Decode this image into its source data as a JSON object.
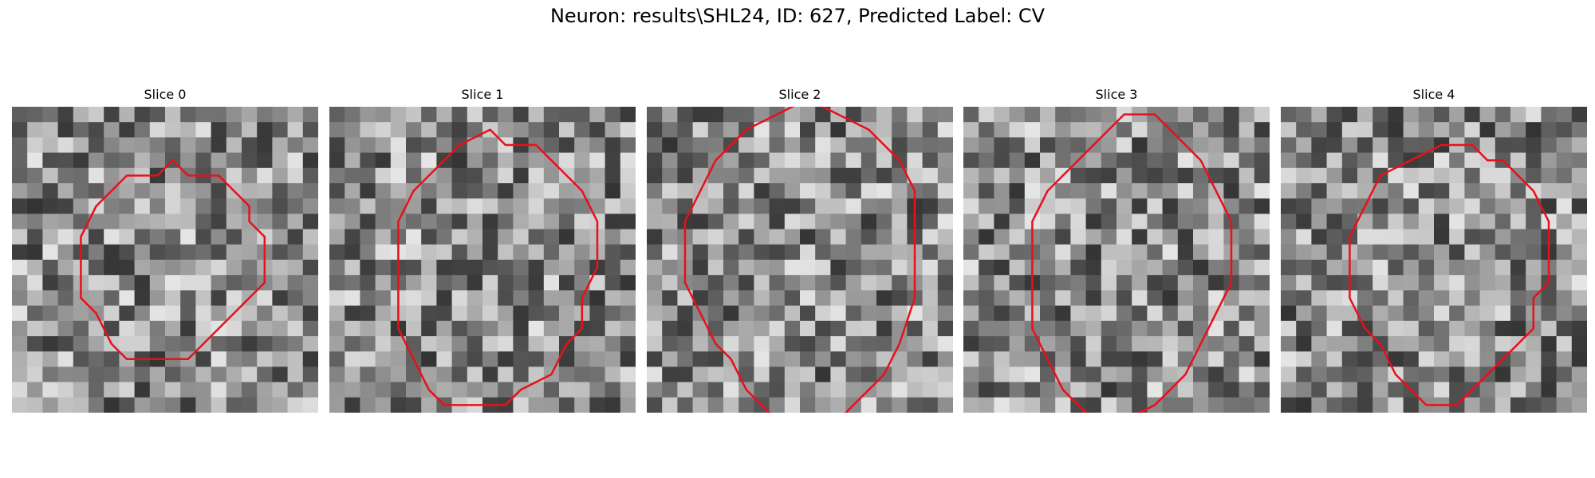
{
  "figure": {
    "title": "Neuron: results\\SHL24, ID: 627, Predicted Label: CV"
  },
  "slices": [
    {
      "label": "Slice 0",
      "seed": 11,
      "contour": [
        [
          7,
          3
        ],
        [
          8,
          4
        ],
        [
          10,
          4
        ],
        [
          11,
          5
        ],
        [
          12,
          6
        ],
        [
          12,
          7
        ],
        [
          13,
          8
        ],
        [
          13,
          11
        ],
        [
          12,
          12
        ],
        [
          11,
          13
        ],
        [
          10,
          14
        ],
        [
          9,
          15
        ],
        [
          8,
          16
        ],
        [
          6,
          16
        ],
        [
          5,
          16
        ],
        [
          4,
          16
        ],
        [
          3,
          15
        ],
        [
          2,
          13
        ],
        [
          1,
          12
        ],
        [
          1,
          8
        ],
        [
          2,
          6
        ],
        [
          3,
          5
        ],
        [
          4,
          4
        ],
        [
          6,
          4
        ]
      ],
      "contour_color": "#e8101a"
    },
    {
      "label": "Slice 1",
      "seed": 23,
      "contour": [
        [
          7,
          1
        ],
        [
          8,
          2
        ],
        [
          10,
          2
        ],
        [
          11,
          3
        ],
        [
          12,
          4
        ],
        [
          13,
          5
        ],
        [
          14,
          7
        ],
        [
          14,
          10
        ],
        [
          13,
          12
        ],
        [
          13,
          14
        ],
        [
          12,
          15
        ],
        [
          11,
          17
        ],
        [
          9,
          18
        ],
        [
          8,
          19
        ],
        [
          6,
          19
        ],
        [
          4,
          19
        ],
        [
          3,
          18
        ],
        [
          2,
          16
        ],
        [
          1,
          14
        ],
        [
          1,
          10
        ],
        [
          1,
          7
        ],
        [
          2,
          5
        ],
        [
          4,
          3
        ],
        [
          5,
          2
        ]
      ],
      "contour_color": "#e8101a"
    },
    {
      "label": "Slice 2",
      "seed": 37,
      "contour": [
        [
          7,
          -1
        ],
        [
          9,
          0
        ],
        [
          11,
          1
        ],
        [
          12,
          2
        ],
        [
          13,
          3
        ],
        [
          14,
          5
        ],
        [
          14,
          8
        ],
        [
          14,
          12
        ],
        [
          13,
          15
        ],
        [
          12,
          17
        ],
        [
          11,
          18
        ],
        [
          10,
          19
        ],
        [
          9,
          20
        ],
        [
          7,
          20
        ],
        [
          5,
          20
        ],
        [
          4,
          19
        ],
        [
          3,
          18
        ],
        [
          2,
          16
        ],
        [
          1,
          15
        ],
        [
          0,
          13
        ],
        [
          -1,
          11
        ],
        [
          -1,
          7
        ],
        [
          0,
          5
        ],
        [
          1,
          3
        ],
        [
          3,
          1
        ],
        [
          5,
          0
        ]
      ],
      "contour_color": "#e8101a"
    },
    {
      "label": "Slice 3",
      "seed": 51,
      "contour": [
        [
          7,
          0
        ],
        [
          9,
          0
        ],
        [
          10,
          1
        ],
        [
          11,
          2
        ],
        [
          12,
          3
        ],
        [
          13,
          5
        ],
        [
          14,
          7
        ],
        [
          14,
          11
        ],
        [
          13,
          13
        ],
        [
          12,
          15
        ],
        [
          11,
          17
        ],
        [
          10,
          18
        ],
        [
          9,
          19
        ],
        [
          7,
          20
        ],
        [
          5,
          20
        ],
        [
          4,
          19
        ],
        [
          3,
          18
        ],
        [
          2,
          16
        ],
        [
          1,
          14
        ],
        [
          1,
          9
        ],
        [
          1,
          7
        ],
        [
          2,
          5
        ],
        [
          3,
          4
        ],
        [
          5,
          2
        ]
      ],
      "contour_color": "#e8101a"
    },
    {
      "label": "Slice 4",
      "seed": 67,
      "contour": [
        [
          7,
          2
        ],
        [
          9,
          2
        ],
        [
          10,
          3
        ],
        [
          11,
          3
        ],
        [
          12,
          4
        ],
        [
          13,
          5
        ],
        [
          14,
          7
        ],
        [
          14,
          11
        ],
        [
          13,
          12
        ],
        [
          13,
          14
        ],
        [
          12,
          15
        ],
        [
          11,
          16
        ],
        [
          10,
          17
        ],
        [
          8,
          19
        ],
        [
          6,
          19
        ],
        [
          5,
          18
        ],
        [
          4,
          17
        ],
        [
          3,
          15
        ],
        [
          2,
          14
        ],
        [
          1,
          12
        ],
        [
          1,
          8
        ],
        [
          2,
          6
        ],
        [
          3,
          4
        ],
        [
          5,
          3
        ]
      ],
      "contour_color": "#e8101a"
    }
  ]
}
